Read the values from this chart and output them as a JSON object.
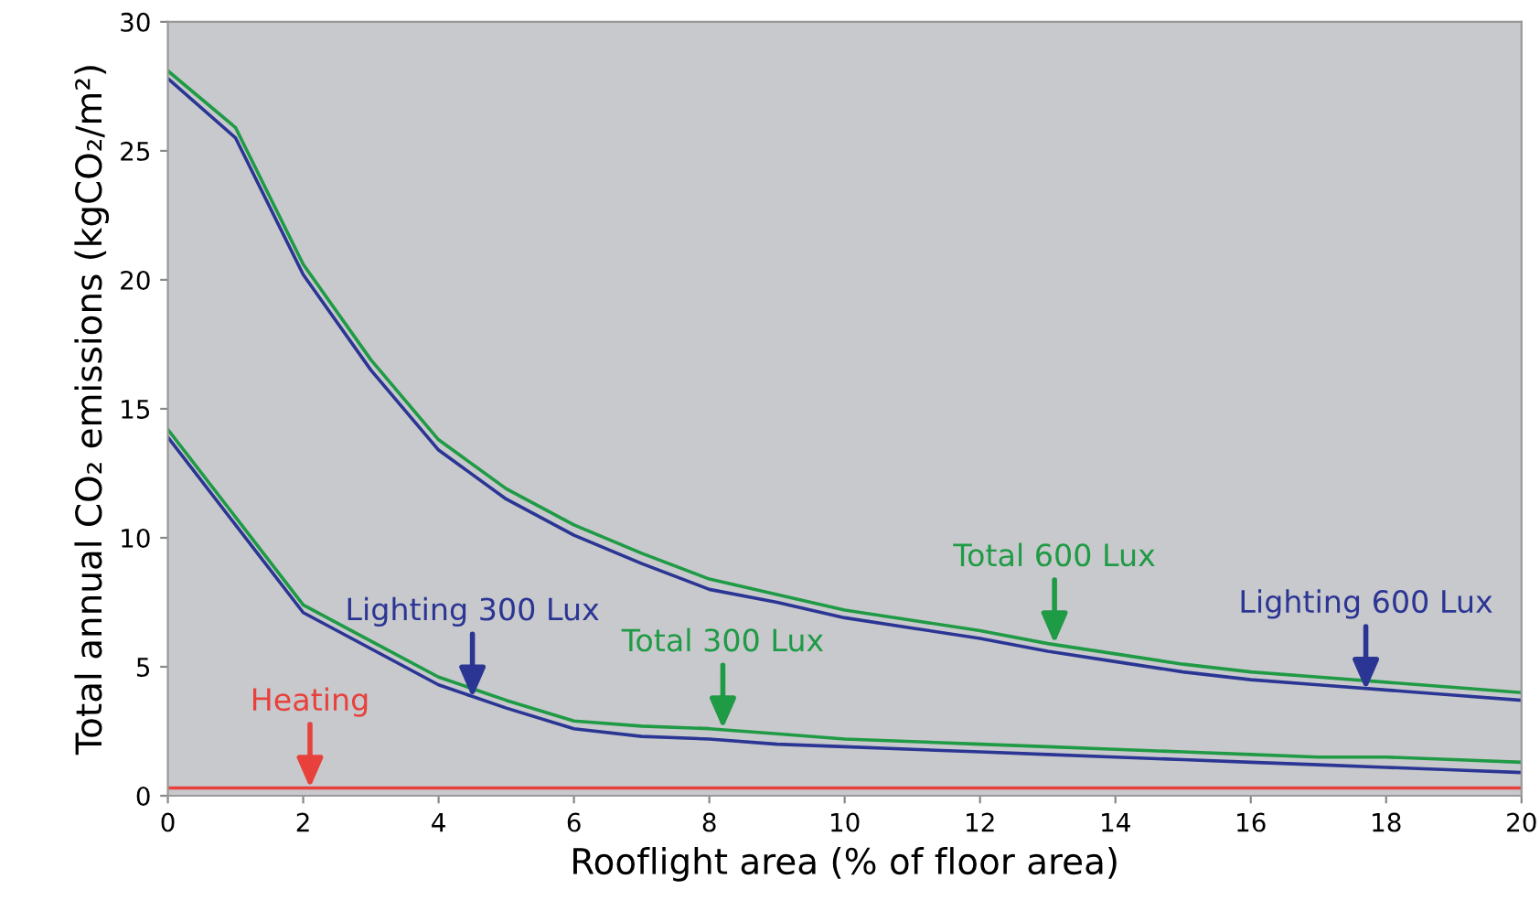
{
  "chart_data": {
    "type": "line",
    "xlabel": "Rooflight area (% of floor area)",
    "ylabel": "Total annual CO₂ emissions (kgCO₂/m²)",
    "x": [
      0,
      1,
      2,
      3,
      4,
      5,
      6,
      7,
      8,
      9,
      10,
      11,
      12,
      13,
      14,
      15,
      16,
      17,
      18,
      19,
      20
    ],
    "xlim": [
      0,
      20
    ],
    "xticks": [
      0,
      2,
      4,
      6,
      8,
      10,
      12,
      14,
      16,
      18,
      20
    ],
    "ylim": [
      0,
      30
    ],
    "yticks": [
      0,
      5,
      10,
      15,
      20,
      25,
      30
    ],
    "grid": false,
    "marker": "none",
    "line_style": "solid",
    "series": [
      {
        "color": "#1f9a45",
        "values": [
          28.1,
          25.9,
          20.6,
          16.9,
          13.8,
          11.9,
          10.5,
          9.4,
          8.4,
          7.8,
          7.2,
          6.8,
          6.4,
          5.9,
          5.5,
          5.1,
          4.8,
          4.6,
          4.4,
          4.2,
          4.0
        ]
      },
      {
        "color": "#2b3594",
        "values": [
          27.8,
          25.5,
          20.2,
          16.5,
          13.4,
          11.5,
          10.1,
          9.0,
          8.0,
          7.5,
          6.9,
          6.5,
          6.1,
          5.6,
          5.2,
          4.8,
          4.5,
          4.3,
          4.1,
          3.9,
          3.7
        ]
      },
      {
        "color": "#1f9a45",
        "values": [
          14.2,
          10.8,
          7.4,
          6.0,
          4.6,
          3.7,
          2.9,
          2.7,
          2.6,
          2.4,
          2.2,
          2.1,
          2.0,
          1.9,
          1.8,
          1.7,
          1.6,
          1.5,
          1.5,
          1.4,
          1.3
        ]
      },
      {
        "color": "#2b3594",
        "values": [
          13.9,
          10.5,
          7.1,
          5.7,
          4.3,
          3.4,
          2.6,
          2.3,
          2.2,
          2.0,
          1.9,
          1.8,
          1.7,
          1.6,
          1.5,
          1.4,
          1.3,
          1.2,
          1.1,
          1.0,
          0.9
        ]
      },
      {
        "color": "#e8413c",
        "values": [
          0.3,
          0.3,
          0.3,
          0.3,
          0.3,
          0.3,
          0.3,
          0.3,
          0.3,
          0.3,
          0.3,
          0.3,
          0.3,
          0.3,
          0.3,
          0.3,
          0.3,
          0.3,
          0.3,
          0.3,
          0.3
        ]
      }
    ],
    "annotations": [
      {
        "text": "Total 600 Lux",
        "x": 13.1,
        "y": 5.9
      },
      {
        "text": "Lighting 600 Lux",
        "x": 17.7,
        "y": 4.1
      },
      {
        "text": "Total 300 Lux",
        "x": 8.2,
        "y": 2.6
      },
      {
        "text": "Lighting 300 Lux",
        "x": 4.5,
        "y": 3.8
      },
      {
        "text": "Heating",
        "x": 2.1,
        "y": 0.3
      }
    ]
  }
}
